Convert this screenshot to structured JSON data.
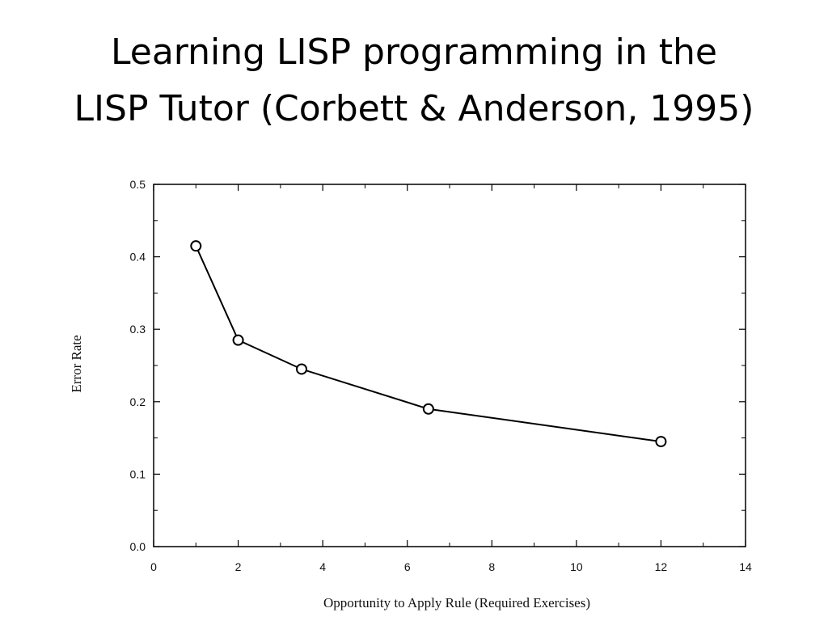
{
  "slide": {
    "title_line1": "Learning LISP programming in the",
    "title_line2": "LISP Tutor (Corbett & Anderson, 1995)"
  },
  "chart_data": {
    "type": "line",
    "title": "",
    "xlabel": "Opportunity to Apply Rule (Required Exercises)",
    "ylabel": "Error Rate",
    "xlim": [
      0,
      14
    ],
    "ylim": [
      0.0,
      0.5
    ],
    "x_ticks": [
      "0",
      "2",
      "4",
      "6",
      "8",
      "10",
      "12",
      "14"
    ],
    "y_ticks": [
      "0.0",
      "0.1",
      "0.2",
      "0.3",
      "0.4",
      "0.5"
    ],
    "series": [
      {
        "x": [
          1,
          2,
          3.5,
          6.5,
          12
        ],
        "y": [
          0.415,
          0.285,
          0.245,
          0.19,
          0.145
        ]
      }
    ],
    "marker": "open-circle",
    "line_color": "#000000",
    "grid": false,
    "legend": "none"
  }
}
